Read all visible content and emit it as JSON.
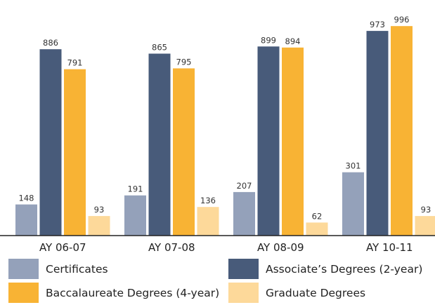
{
  "chart_data": {
    "type": "bar",
    "title": "",
    "xlabel": "",
    "ylabel": "",
    "ylim": [
      0,
      1000
    ],
    "grid": false,
    "legend_position": "bottom",
    "categories": [
      "AY 06-07",
      "AY 07-08",
      "AY 08-09",
      "AY 10-11"
    ],
    "series": [
      {
        "name": "Certificates",
        "values": [
          148,
          191,
          207,
          301
        ],
        "color": "#94a1ba"
      },
      {
        "name": "Associate’s Degrees (2-year)",
        "values": [
          886,
          865,
          899,
          973
        ],
        "color": "#485b7a"
      },
      {
        "name": "Baccalaureate Degrees (4-year)",
        "values": [
          791,
          795,
          894,
          996
        ],
        "color": "#f8b334"
      },
      {
        "name": "Graduate Degrees",
        "values": [
          93,
          136,
          62,
          93
        ],
        "color": "#fdd99a"
      }
    ]
  }
}
